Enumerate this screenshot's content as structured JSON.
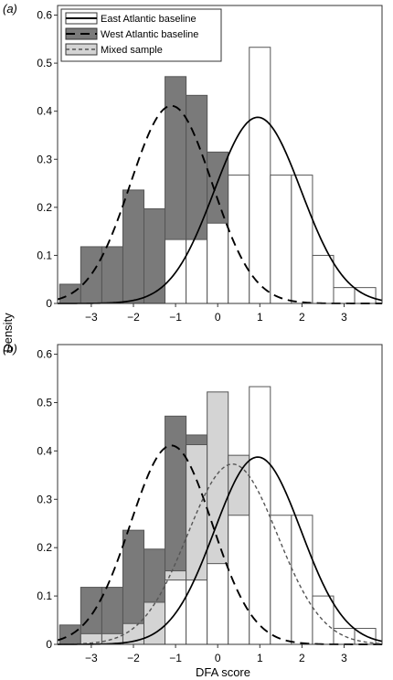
{
  "figure": {
    "ylabel": "Density",
    "xlabel": "DFA score"
  },
  "legend": {
    "items": [
      {
        "label": "East Atlantic baseline",
        "swatch": "#ffffff",
        "line": "solid"
      },
      {
        "label": "West Atlantic baseline",
        "swatch": "#7a7a7a",
        "line": "dashed"
      },
      {
        "label": "Mixed sample",
        "swatch": "#d4d4d4",
        "line": "dotted"
      }
    ]
  },
  "colors": {
    "west_fill": "#7a7a7a",
    "east_fill": "#ffffff",
    "mixed_fill": "#d4d4d4",
    "bar_stroke": "#555555",
    "curve": "#000000",
    "mixed_curve": "#555555"
  },
  "chart_data": [
    {
      "panel_label": "(a)",
      "type": "bar",
      "xlim": [
        -3.8,
        3.9
      ],
      "ylim": [
        0,
        0.62
      ],
      "xticks": [
        "−3",
        "−2",
        "−1",
        "0",
        "1",
        "2",
        "3"
      ],
      "xtick_values": [
        -3,
        -2,
        -1,
        0,
        1,
        2,
        3
      ],
      "yticks": [
        "0",
        "0.1",
        "0.2",
        "0.3",
        "0.4",
        "0.5",
        "0.6"
      ],
      "ytick_values": [
        0,
        0.1,
        0.2,
        0.3,
        0.4,
        0.5,
        0.6
      ],
      "bin_width": 0.5,
      "series": [
        {
          "name": "West Atlantic baseline",
          "bin_starts": [
            -3.75,
            -3.25,
            -2.75,
            -2.25,
            -1.75,
            -1.25,
            -0.75,
            -0.25,
            0.25
          ],
          "values": [
            0.04,
            0.118,
            0.118,
            0.236,
            0.197,
            0.472,
            0.433,
            0.315,
            0.079
          ]
        },
        {
          "name": "East Atlantic baseline",
          "bin_starts": [
            -1.25,
            -0.75,
            -0.25,
            0.25,
            0.75,
            1.25,
            1.75,
            2.25,
            2.75,
            3.25
          ],
          "values": [
            0.133,
            0.133,
            0.167,
            0.267,
            0.533,
            0.267,
            0.267,
            0.1,
            0.033,
            0.033
          ]
        }
      ],
      "curves": [
        {
          "name": "West Atlantic baseline",
          "style": "dashed",
          "mean": -1.1,
          "sd": 0.97
        },
        {
          "name": "East Atlantic baseline",
          "style": "solid",
          "mean": 0.95,
          "sd": 1.03
        }
      ]
    },
    {
      "panel_label": "(b)",
      "type": "bar",
      "xlim": [
        -3.8,
        3.9
      ],
      "ylim": [
        0,
        0.62
      ],
      "xticks": [
        "−3",
        "−2",
        "−1",
        "0",
        "1",
        "2",
        "3"
      ],
      "xtick_values": [
        -3,
        -2,
        -1,
        0,
        1,
        2,
        3
      ],
      "yticks": [
        "0",
        "0.1",
        "0.2",
        "0.3",
        "0.4",
        "0.5",
        "0.6"
      ],
      "ytick_values": [
        0,
        0.1,
        0.2,
        0.3,
        0.4,
        0.5,
        0.6
      ],
      "bin_width": 0.5,
      "series": [
        {
          "name": "West Atlantic baseline",
          "bin_starts": [
            -3.75,
            -3.25,
            -2.75,
            -2.25,
            -1.75,
            -1.25,
            -0.75,
            -0.25,
            0.25
          ],
          "values": [
            0.04,
            0.118,
            0.118,
            0.236,
            0.197,
            0.472,
            0.433,
            0.315,
            0.079
          ]
        },
        {
          "name": "Mixed sample",
          "bin_starts": [
            -3.25,
            -2.75,
            -2.25,
            -1.75,
            -1.25,
            -0.75,
            -0.25,
            0.25,
            0.75,
            1.25,
            1.75
          ],
          "values": [
            0.022,
            0.022,
            0.043,
            0.087,
            0.152,
            0.413,
            0.522,
            0.391,
            0.348,
            0.13,
            0.022
          ]
        },
        {
          "name": "East Atlantic baseline",
          "bin_starts": [
            -1.25,
            -0.75,
            -0.25,
            0.25,
            0.75,
            1.25,
            1.75,
            2.25,
            2.75,
            3.25
          ],
          "values": [
            0.133,
            0.133,
            0.167,
            0.267,
            0.533,
            0.267,
            0.267,
            0.1,
            0.033,
            0.033
          ]
        }
      ],
      "curves": [
        {
          "name": "West Atlantic baseline",
          "style": "dashed",
          "mean": -1.1,
          "sd": 0.97
        },
        {
          "name": "Mixed sample",
          "style": "dotted",
          "mean": 0.35,
          "sd": 1.07
        },
        {
          "name": "East Atlantic baseline",
          "style": "solid",
          "mean": 0.95,
          "sd": 1.03
        }
      ]
    }
  ]
}
